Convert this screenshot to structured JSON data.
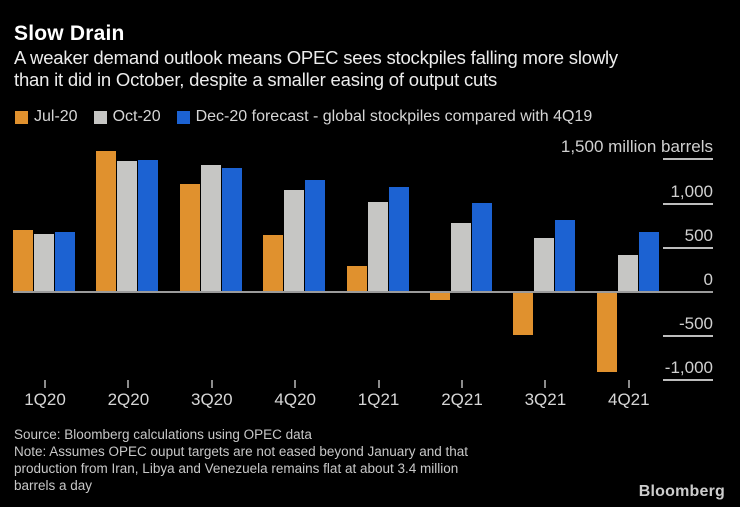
{
  "header": {
    "title": "Slow Drain",
    "subtitle": "A weaker demand outlook means OPEC sees stockpiles falling more slowly\nthan it did in October, despite a smaller easing of output cuts"
  },
  "chart_data": {
    "type": "bar",
    "title": "Slow Drain",
    "unit_label": "million barrels",
    "categories": [
      "1Q20",
      "2Q20",
      "3Q20",
      "4Q20",
      "1Q21",
      "2Q21",
      "3Q21",
      "4Q21"
    ],
    "series": [
      {
        "name": "Jul-20",
        "short": "Jul-20",
        "color": "#E0912E",
        "values": [
          700,
          1590,
          1220,
          650,
          290,
          -90,
          -490,
          -900
        ]
      },
      {
        "name": "Oct-20",
        "short": "Oct-20",
        "color": "#C6C6C4",
        "values": [
          660,
          1480,
          1440,
          1150,
          1020,
          780,
          610,
          420
        ]
      },
      {
        "name": "Dec-20 forecast - global stockpiles compared with 4Q19",
        "short": "Dec-20",
        "color": "#1C62D2",
        "values": [
          680,
          1490,
          1400,
          1270,
          1190,
          1010,
          810,
          680
        ]
      }
    ],
    "y_ticks": [
      {
        "value": 1500,
        "label": "1,500 million barrels"
      },
      {
        "value": 1000,
        "label": "1,000"
      },
      {
        "value": 500,
        "label": "500"
      },
      {
        "value": 0,
        "label": "0"
      },
      {
        "value": -500,
        "label": "-500"
      },
      {
        "value": -1000,
        "label": "-1,000"
      }
    ],
    "ylim": [
      -1100,
      1700
    ],
    "grid": false,
    "legend_position": "top",
    "axis_side": "right"
  },
  "footer": {
    "source": "Source: Bloomberg calculations using OPEC data",
    "note": "Note: Assumes OPEC ouput targets are not eased beyond January and that\nproduction from Iran, Libya and Venezuela remains flat at about 3.4 million\nbarrels a day",
    "brand": "Bloomberg"
  }
}
